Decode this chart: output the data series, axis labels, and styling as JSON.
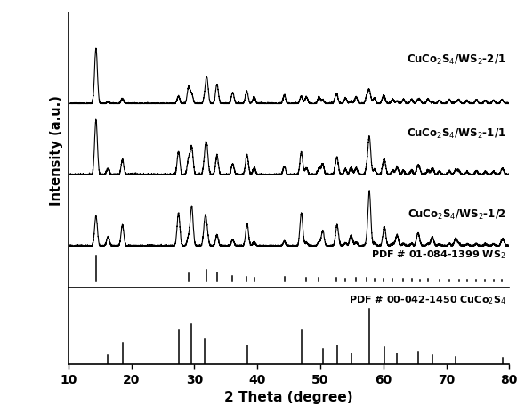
{
  "xlabel": "2 Theta (degree)",
  "ylabel": "Intensity (a.u.)",
  "xlim": [
    10,
    80
  ],
  "labels": [
    "CuCo$_2$S$_4$/WS$_2$-2/1",
    "CuCo$_2$S$_4$/WS$_2$-1/1",
    "CuCo$_2$S$_4$/WS$_2$-1/2",
    "PDF # 01-084-1399 WS$_2$",
    "PDF # 00-042-1450 CuCo$_2$S$_4$"
  ],
  "ws2_peaks": [
    14.4,
    29.1,
    32.0,
    33.6,
    36.1,
    38.3,
    39.5,
    44.3,
    47.8,
    49.8,
    52.5,
    54.0,
    55.7,
    57.4,
    58.6,
    60.0,
    61.5,
    63.2,
    64.5,
    65.8,
    67.1,
    68.9,
    70.5,
    72.0,
    73.3,
    74.8,
    76.2,
    77.5,
    78.8
  ],
  "ws2_heights": [
    1.0,
    0.3,
    0.45,
    0.35,
    0.2,
    0.15,
    0.12,
    0.15,
    0.12,
    0.12,
    0.12,
    0.1,
    0.12,
    0.12,
    0.1,
    0.1,
    0.08,
    0.08,
    0.08,
    0.06,
    0.08,
    0.06,
    0.07,
    0.07,
    0.06,
    0.07,
    0.06,
    0.06,
    0.05
  ],
  "cuco2s4_peaks": [
    16.3,
    18.6,
    27.5,
    29.6,
    31.7,
    38.4,
    47.0,
    50.4,
    52.7,
    54.9,
    57.8,
    60.2,
    62.2,
    65.5,
    67.8,
    71.5,
    79.0
  ],
  "cuco2s4_heights": [
    0.15,
    0.35,
    0.55,
    0.65,
    0.4,
    0.3,
    0.55,
    0.25,
    0.3,
    0.18,
    0.9,
    0.28,
    0.18,
    0.2,
    0.15,
    0.12,
    0.1
  ],
  "background_color": "#ffffff",
  "line_color": "#000000"
}
